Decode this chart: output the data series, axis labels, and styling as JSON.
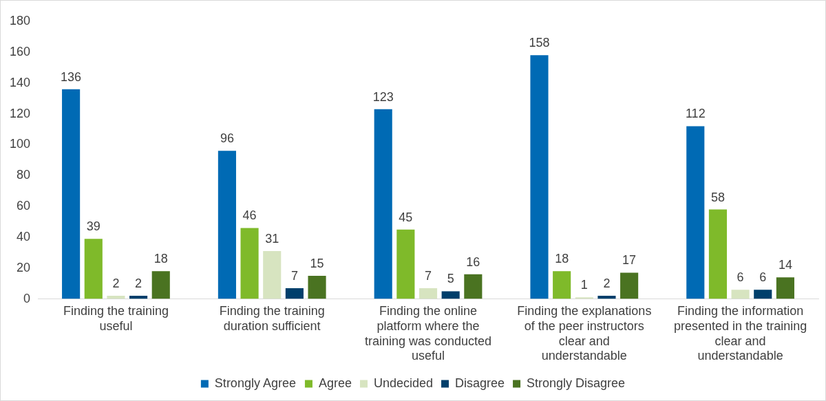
{
  "chart_data": {
    "type": "bar",
    "categories": [
      "Finding the training useful",
      "Finding the training duration sufficient",
      "Finding the online platform where the training was conducted useful",
      "Finding the explanations of the peer instructors clear and understandable",
      "Finding the information presented in the training clear and understandable"
    ],
    "series": [
      {
        "name": "Strongly Agree",
        "color": "#006ab4",
        "values": [
          136,
          96,
          123,
          158,
          112
        ]
      },
      {
        "name": "Agree",
        "color": "#7fba2a",
        "values": [
          39,
          46,
          45,
          18,
          58
        ]
      },
      {
        "name": "Undecided",
        "color": "#d7e4c0",
        "values": [
          2,
          31,
          7,
          1,
          6
        ]
      },
      {
        "name": "Disagree",
        "color": "#003f6b",
        "values": [
          2,
          7,
          5,
          2,
          6
        ]
      },
      {
        "name": "Strongly Disagree",
        "color": "#4a7321",
        "values": [
          18,
          15,
          16,
          17,
          14
        ]
      }
    ],
    "ylim": [
      0,
      180
    ],
    "yticks": [
      0,
      20,
      40,
      60,
      80,
      100,
      120,
      140,
      160,
      180
    ],
    "grid": false,
    "legend": "bottom",
    "data_labels": true
  }
}
